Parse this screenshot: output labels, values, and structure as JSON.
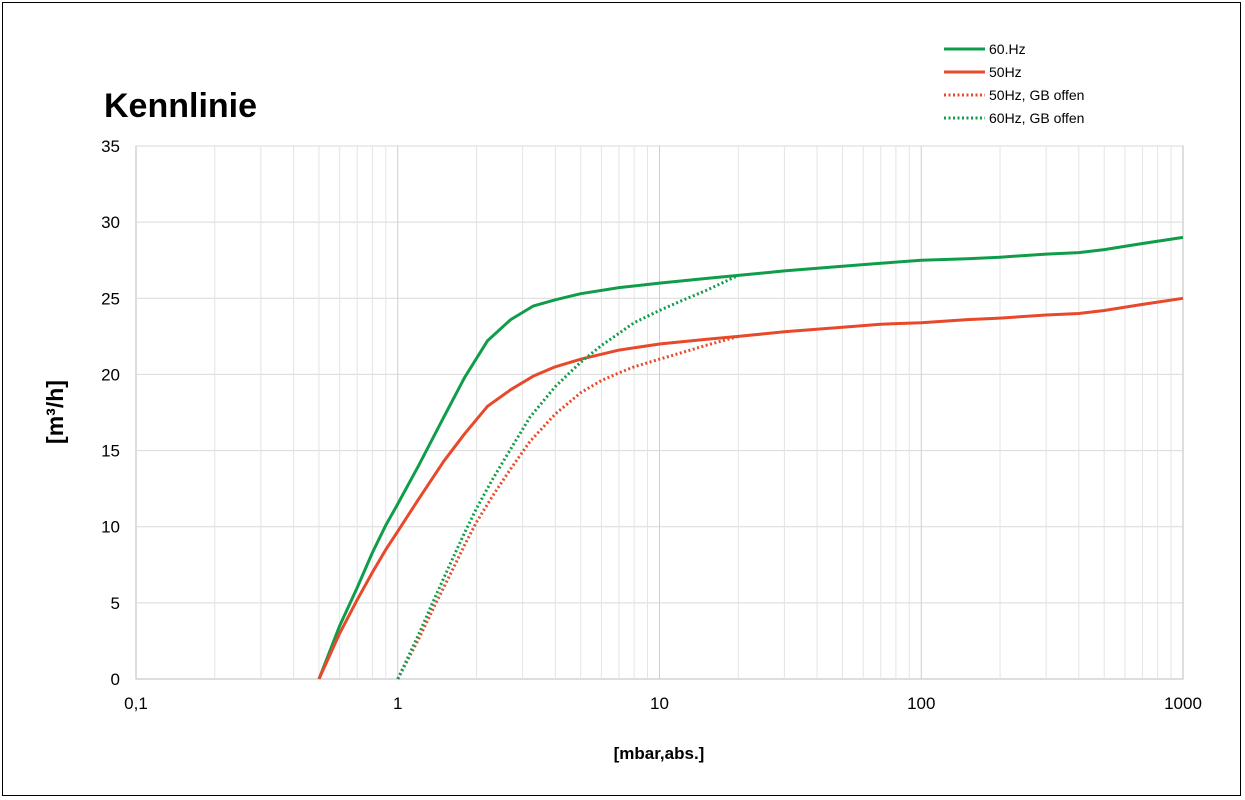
{
  "chart_data": {
    "type": "line",
    "title": "Kennlinie",
    "xlabel": "[mbar,abs.]",
    "ylabel": "[m³/h]",
    "x_scale": "log",
    "xlim": [
      0.1,
      1000
    ],
    "ylim": [
      0,
      35
    ],
    "x_ticks": [
      0.1,
      1,
      10,
      100,
      1000
    ],
    "x_tick_labels": [
      "0,1",
      "1",
      "10",
      "100",
      "1000"
    ],
    "y_ticks": [
      0,
      5,
      10,
      15,
      20,
      25,
      30,
      35
    ],
    "y_tick_labels": [
      "0",
      "5",
      "10",
      "15",
      "20",
      "25",
      "30",
      "35"
    ],
    "grid": true,
    "legend_position": "top-right",
    "series": [
      {
        "name": "60.Hz",
        "color": "#0f9d4a",
        "style": "solid",
        "x": [
          0.5,
          0.6,
          0.7,
          0.8,
          0.9,
          1,
          1.2,
          1.5,
          1.8,
          2.2,
          2.7,
          3.3,
          4,
          5,
          7,
          10,
          15,
          20,
          30,
          50,
          70,
          100,
          150,
          200,
          300,
          400,
          500,
          700,
          1000
        ],
        "y": [
          0,
          3.5,
          6,
          8.3,
          10.1,
          11.5,
          14,
          17.2,
          19.8,
          22.2,
          23.6,
          24.5,
          24.9,
          25.3,
          25.7,
          26.0,
          26.3,
          26.5,
          26.8,
          27.1,
          27.3,
          27.5,
          27.6,
          27.7,
          27.9,
          28.0,
          28.2,
          28.6,
          29.0
        ]
      },
      {
        "name": "50Hz",
        "color": "#e8492a",
        "style": "solid",
        "x": [
          0.5,
          0.6,
          0.7,
          0.8,
          0.9,
          1,
          1.2,
          1.5,
          1.8,
          2.2,
          2.7,
          3.3,
          4,
          5,
          7,
          10,
          15,
          20,
          30,
          50,
          70,
          100,
          150,
          200,
          300,
          400,
          500,
          700,
          1000
        ],
        "y": [
          0,
          3.0,
          5.2,
          7.0,
          8.5,
          9.7,
          11.8,
          14.3,
          16.1,
          17.9,
          19.0,
          19.9,
          20.5,
          21.0,
          21.6,
          22.0,
          22.3,
          22.5,
          22.8,
          23.1,
          23.3,
          23.4,
          23.6,
          23.7,
          23.9,
          24.0,
          24.2,
          24.6,
          25.0
        ]
      },
      {
        "name": "50Hz, GB offen",
        "color": "#e8492a",
        "style": "dotted",
        "x": [
          1,
          1.2,
          1.4,
          1.6,
          1.8,
          2,
          2.3,
          2.7,
          3.2,
          4,
          5,
          6,
          7,
          8,
          10,
          12,
          15,
          20
        ],
        "y": [
          0,
          2.6,
          5.0,
          7.0,
          8.8,
          10.3,
          12.0,
          13.8,
          15.6,
          17.4,
          18.8,
          19.6,
          20.1,
          20.5,
          21.0,
          21.4,
          21.9,
          22.5
        ]
      },
      {
        "name": "60Hz, GB offen",
        "color": "#0f9d4a",
        "style": "dotted",
        "x": [
          1,
          1.2,
          1.4,
          1.6,
          1.8,
          2,
          2.3,
          2.7,
          3.2,
          4,
          5,
          6,
          7,
          8,
          10,
          12,
          15,
          20
        ],
        "y": [
          0,
          2.9,
          5.5,
          7.7,
          9.6,
          11.2,
          13.1,
          15.1,
          17.2,
          19.2,
          20.8,
          21.9,
          22.7,
          23.4,
          24.2,
          24.8,
          25.5,
          26.5
        ]
      }
    ]
  }
}
